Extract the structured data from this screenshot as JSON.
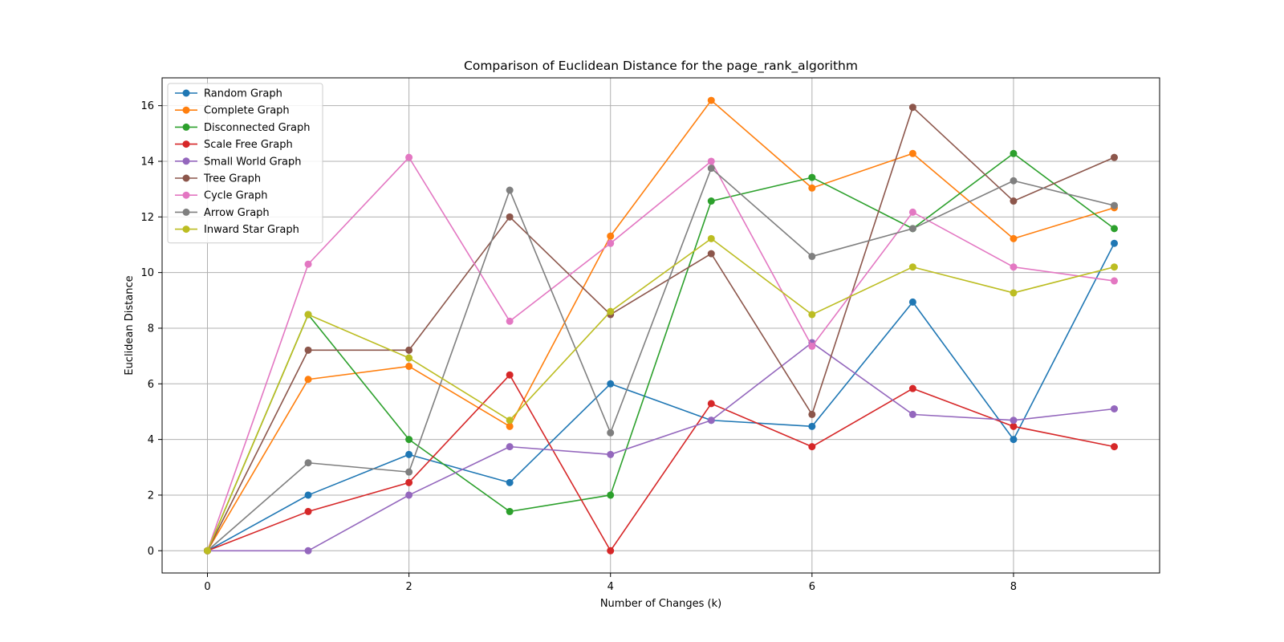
{
  "chart_data": {
    "type": "line",
    "title": "Comparison of Euclidean Distance for the page_rank_algorithm",
    "xlabel": "Number of Changes (k)",
    "ylabel": "Euclidean Distance",
    "x": [
      0,
      1,
      2,
      3,
      4,
      5,
      6,
      7,
      8,
      9
    ],
    "xlim": [
      -0.45,
      9.45
    ],
    "ylim": [
      -0.8,
      17.0
    ],
    "xticks": [
      0,
      2,
      4,
      6,
      8
    ],
    "yticks": [
      0,
      2,
      4,
      6,
      8,
      10,
      12,
      14,
      16
    ],
    "grid": true,
    "legend_position": "top-left",
    "series": [
      {
        "name": "Random Graph",
        "color": "#1f77b4",
        "values": [
          0,
          2.0,
          3.46,
          2.45,
          6.0,
          4.69,
          4.47,
          8.94,
          4.0,
          11.05
        ]
      },
      {
        "name": "Complete Graph",
        "color": "#ff7f0e",
        "values": [
          0,
          6.16,
          6.63,
          4.47,
          11.31,
          16.19,
          13.04,
          14.28,
          11.22,
          12.33
        ]
      },
      {
        "name": "Disconnected Graph",
        "color": "#2ca02c",
        "values": [
          0,
          8.49,
          4.0,
          1.41,
          2.0,
          12.57,
          13.42,
          11.58,
          14.28,
          11.58
        ]
      },
      {
        "name": "Scale Free Graph",
        "color": "#d62728",
        "values": [
          0,
          1.41,
          2.45,
          6.32,
          0.0,
          5.29,
          3.74,
          5.83,
          4.47,
          3.74
        ]
      },
      {
        "name": "Small World Graph",
        "color": "#9467bd",
        "values": [
          0,
          0.0,
          2.0,
          3.74,
          3.46,
          4.69,
          7.48,
          4.9,
          4.69,
          5.1
        ]
      },
      {
        "name": "Tree Graph",
        "color": "#8c564b",
        "values": [
          0,
          7.21,
          7.21,
          12.0,
          8.49,
          10.68,
          4.9,
          15.94,
          12.57,
          14.14
        ]
      },
      {
        "name": "Cycle Graph",
        "color": "#e377c2",
        "values": [
          0,
          10.3,
          14.14,
          8.25,
          11.05,
          14.0,
          7.35,
          12.17,
          10.2,
          9.7
        ]
      },
      {
        "name": "Arrow Graph",
        "color": "#7f7f7f",
        "values": [
          0,
          3.16,
          2.83,
          12.96,
          4.24,
          13.75,
          10.58,
          11.58,
          13.3,
          12.41
        ]
      },
      {
        "name": "Inward Star Graph",
        "color": "#bcbd22",
        "values": [
          0,
          8.49,
          6.93,
          4.69,
          8.6,
          11.22,
          8.49,
          10.2,
          9.27,
          10.2
        ]
      }
    ]
  }
}
